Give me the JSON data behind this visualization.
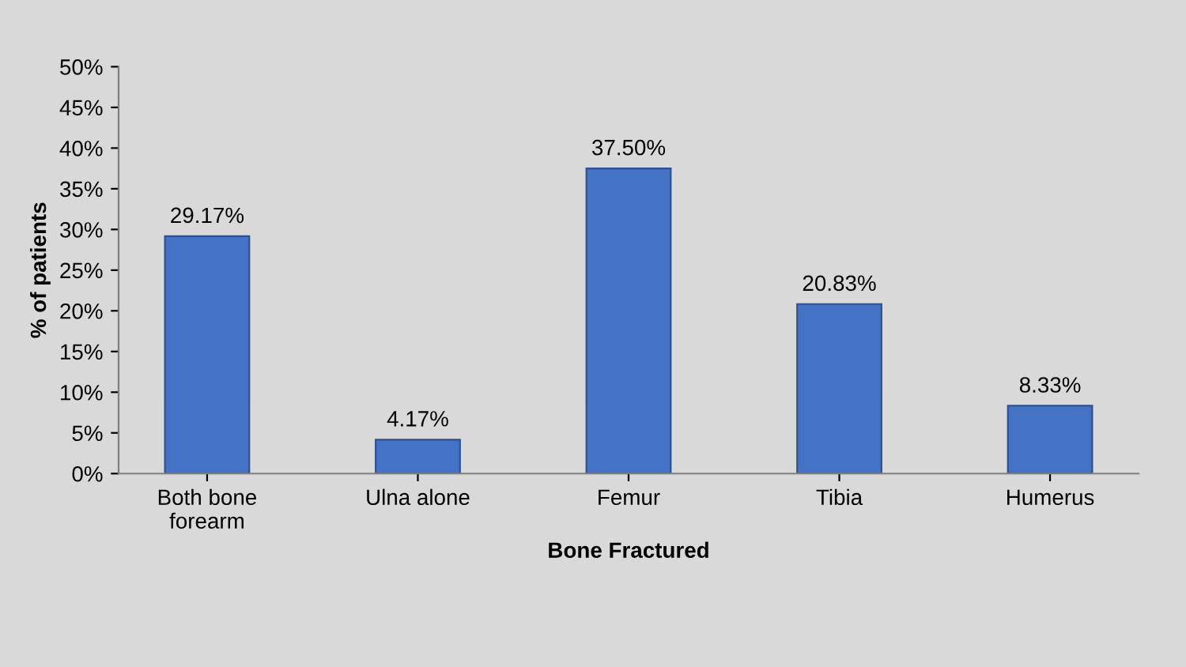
{
  "chart_data": {
    "type": "bar",
    "xlabel": "Bone Fractured",
    "ylabel": "% of patients",
    "categories": [
      "Both bone\nforearm",
      "Ulna alone",
      "Femur",
      "Tibia",
      "Humerus"
    ],
    "values": [
      29.17,
      4.17,
      37.5,
      20.83,
      8.33
    ],
    "value_labels": [
      "29.17%",
      "4.17%",
      "37.50%",
      "20.83%",
      "8.33%"
    ],
    "color": "#4472c4",
    "ylim": [
      0,
      50
    ],
    "yticks": [
      {
        "value": 0,
        "label": "0%"
      },
      {
        "value": 5,
        "label": "5%"
      },
      {
        "value": 10,
        "label": "10%"
      },
      {
        "value": 15,
        "label": "15%"
      },
      {
        "value": 20,
        "label": "20%"
      },
      {
        "value": 25,
        "label": "25%"
      },
      {
        "value": 30,
        "label": "30%"
      },
      {
        "value": 35,
        "label": "35%"
      },
      {
        "value": 40,
        "label": "40%"
      },
      {
        "value": 45,
        "label": "45%"
      },
      {
        "value": 50,
        "label": "50%"
      }
    ],
    "grid": false,
    "legend": false
  }
}
